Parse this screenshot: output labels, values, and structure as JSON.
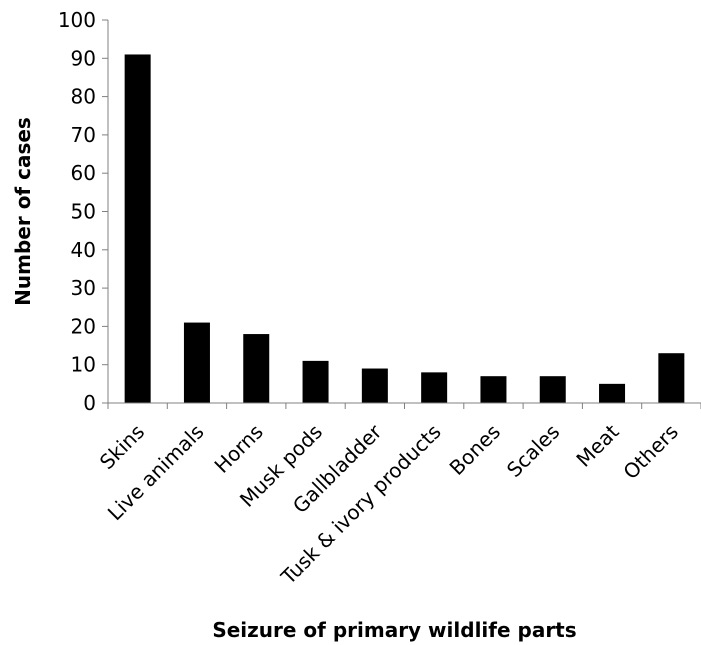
{
  "chart_data": {
    "type": "bar",
    "title": "",
    "categories": [
      "Skins",
      "Live animals",
      "Horns",
      "Musk pods",
      "Gallbladder",
      "Tusk & ivory products",
      "Bones",
      "Scales",
      "Meat",
      "Others"
    ],
    "values": [
      91,
      21,
      18,
      11,
      9,
      8,
      7,
      7,
      5,
      13
    ],
    "xlabel": "Seizure of primary wildlife parts",
    "ylabel": "Number of cases",
    "ylim": [
      0,
      100
    ],
    "yticks": [
      "0",
      "10",
      "20",
      "30",
      "40",
      "50",
      "60",
      "70",
      "80",
      "90",
      "100"
    ],
    "grid": false,
    "legend": "none",
    "bar_color": "#000000",
    "axis_color": "#808080"
  }
}
